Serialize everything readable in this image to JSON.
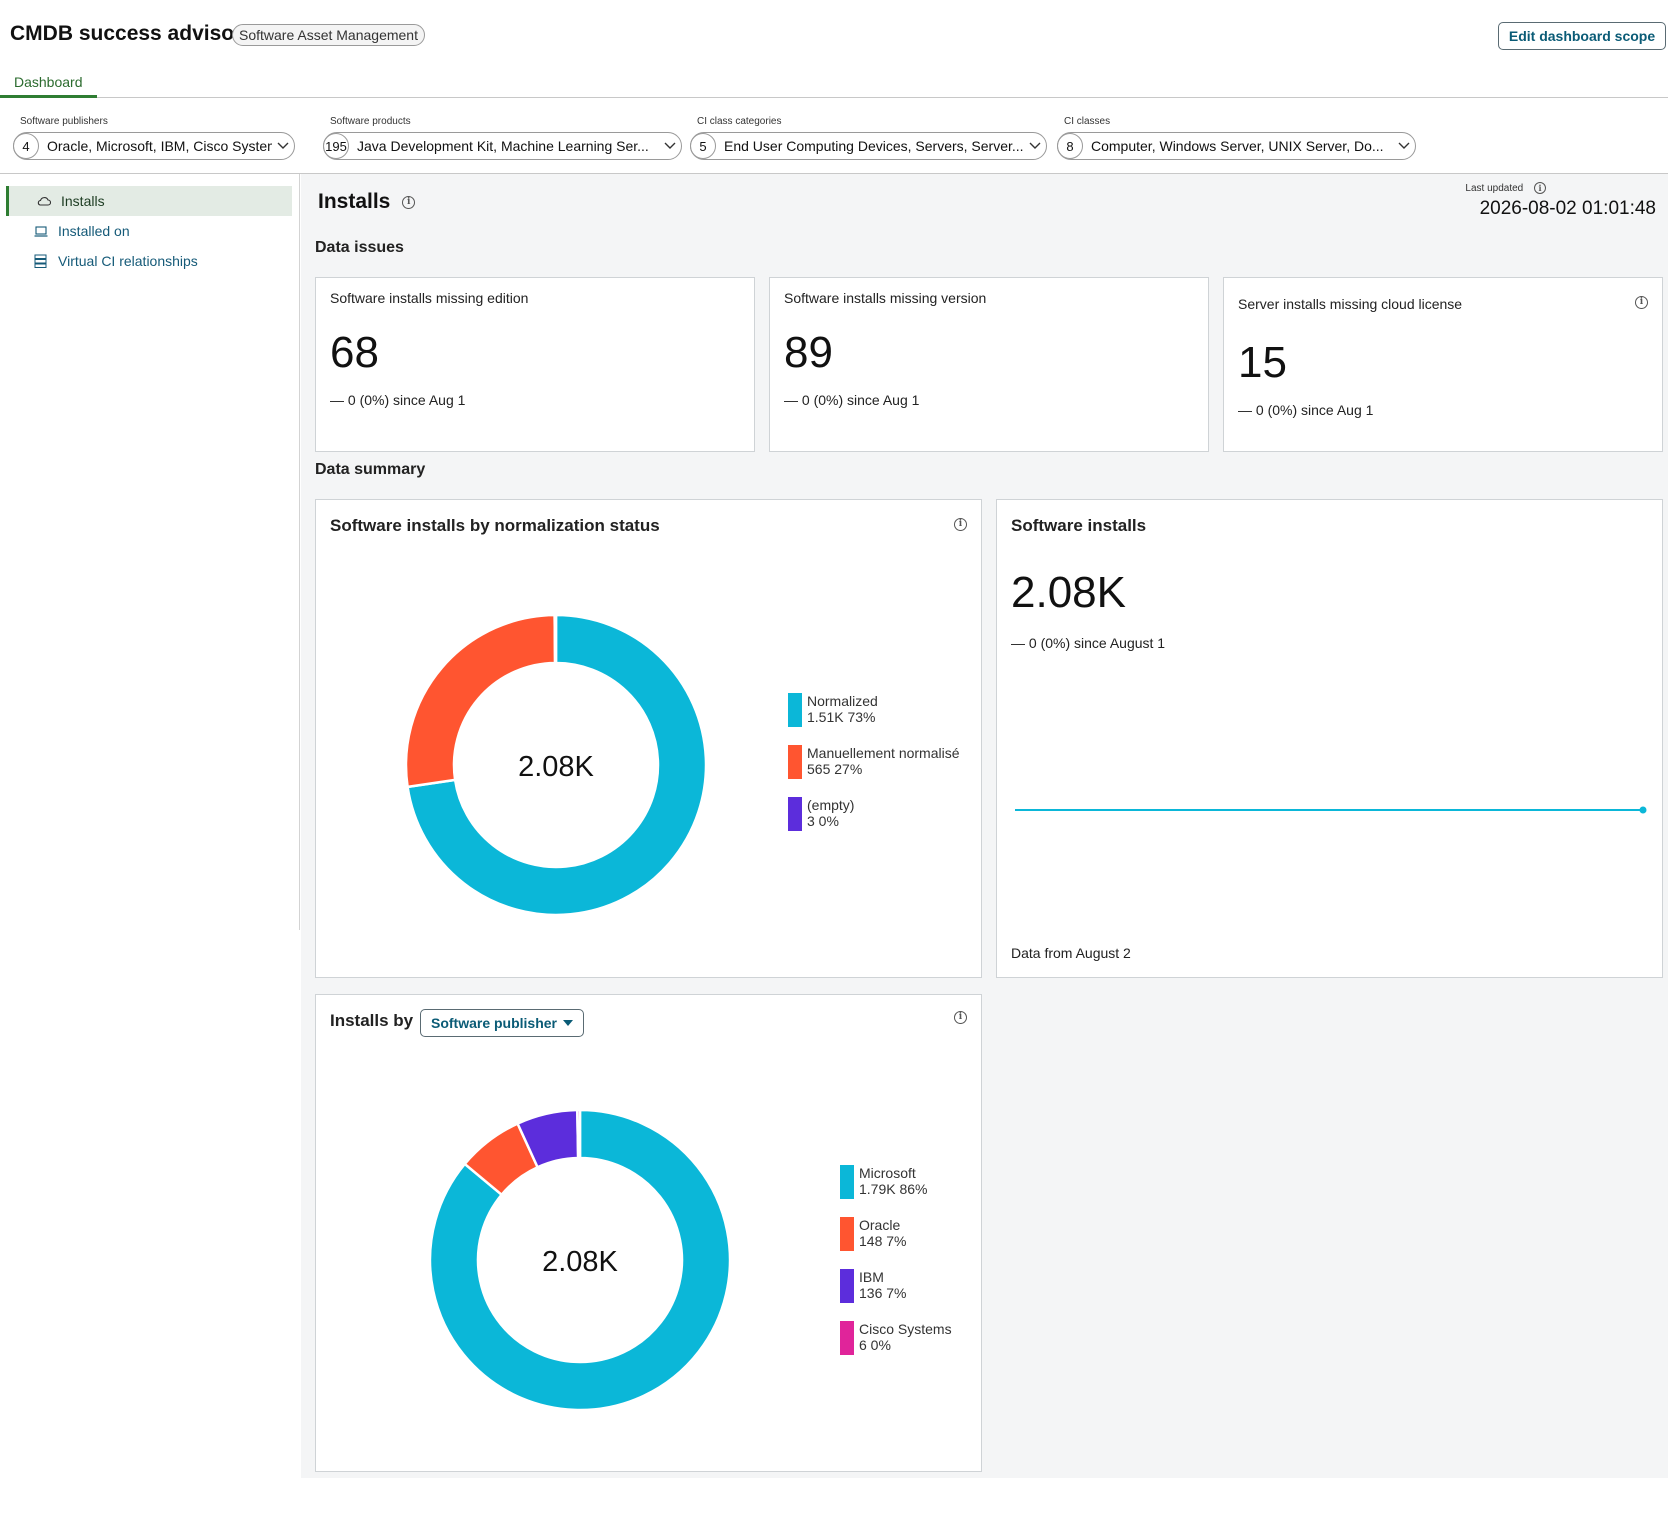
{
  "header": {
    "title": "CMDB success advisor",
    "badge": "Software Asset Management",
    "edit_button": "Edit dashboard scope"
  },
  "tabs": [
    {
      "label": "Dashboard"
    }
  ],
  "filters": [
    {
      "label": "Software publishers",
      "count": "4",
      "value": "Oracle, Microsoft, IBM, Cisco Systems"
    },
    {
      "label": "Software products",
      "count": "195",
      "value": "Java Development Kit, Machine Learning Ser..."
    },
    {
      "label": "CI class categories",
      "count": "5",
      "value": "End User Computing Devices, Servers, Server..."
    },
    {
      "label": "CI classes",
      "count": "8",
      "value": "Computer, Windows Server, UNIX Server, Do..."
    }
  ],
  "sidebar": {
    "items": [
      {
        "label": "Installs",
        "icon": "cloud-icon"
      },
      {
        "label": "Installed on",
        "icon": "laptop-icon"
      },
      {
        "label": "Virtual CI relationships",
        "icon": "server-stack-icon"
      }
    ]
  },
  "main": {
    "title": "Installs",
    "last_updated_label": "Last updated",
    "last_updated_value": "2026-08-02 01:01:48",
    "data_issues_title": "Data issues",
    "data_summary_title": "Data summary"
  },
  "kpis": [
    {
      "title": "Software installs missing edition",
      "value": "68",
      "change": "— 0 (0%) since Aug 1"
    },
    {
      "title": "Software installs missing version",
      "value": "89",
      "change": "— 0 (0%) since Aug 1"
    },
    {
      "title": "Server installs missing cloud license",
      "value": "15",
      "change": "— 0 (0%) since Aug 1"
    }
  ],
  "software_installs": {
    "title": "Software installs",
    "value": "2.08K",
    "change": "— 0 (0%) since August 1",
    "footer": "Data from August 2"
  },
  "installs_by": {
    "title": "Installs by",
    "selected": "Software publisher"
  },
  "chart_data": [
    {
      "type": "pie",
      "title": "Software installs by normalization status",
      "center_label": "2.08K",
      "slices": [
        {
          "name": "Normalized",
          "value_label": "1.51K 73%",
          "value": 1510,
          "percent": 73,
          "color": "#0bb7d8"
        },
        {
          "name": "Manuellement normalisé",
          "value_label": "565 27%",
          "value": 565,
          "percent": 27,
          "color": "#ff5530"
        },
        {
          "name": "(empty)",
          "value_label": "3 0%",
          "value": 3,
          "percent": 0,
          "color": "#5c2ddc"
        }
      ]
    },
    {
      "type": "line",
      "title": "Software installs",
      "x": [
        "August 2"
      ],
      "series": [
        {
          "values": [
            2080
          ]
        }
      ],
      "color": "#0bb7d8"
    },
    {
      "type": "pie",
      "title": "Installs by Software publisher",
      "center_label": "2.08K",
      "slices": [
        {
          "name": "Microsoft",
          "value_label": "1.79K 86%",
          "value": 1790,
          "percent": 86,
          "color": "#0bb7d8"
        },
        {
          "name": "Oracle",
          "value_label": "148 7%",
          "value": 148,
          "percent": 7,
          "color": "#ff5530"
        },
        {
          "name": "IBM",
          "value_label": "136 7%",
          "value": 136,
          "percent": 7,
          "color": "#5c2ddc"
        },
        {
          "name": "Cisco Systems",
          "value_label": "6 0%",
          "value": 6,
          "percent": 0,
          "color": "#e0249a"
        }
      ]
    }
  ]
}
